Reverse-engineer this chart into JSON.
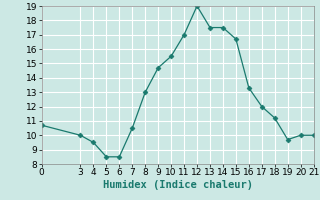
{
  "x": [
    0,
    3,
    4,
    5,
    6,
    7,
    8,
    9,
    10,
    11,
    12,
    13,
    14,
    15,
    16,
    17,
    18,
    19,
    20,
    21
  ],
  "y": [
    10.7,
    10.0,
    9.5,
    8.5,
    8.5,
    10.5,
    13.0,
    14.7,
    15.5,
    17.0,
    19.0,
    17.5,
    17.5,
    16.7,
    13.3,
    12.0,
    11.2,
    9.7,
    10.0,
    10.0
  ],
  "xlabel": "Humidex (Indice chaleur)",
  "xlim": [
    0,
    21
  ],
  "ylim": [
    8,
    19
  ],
  "yticks": [
    8,
    9,
    10,
    11,
    12,
    13,
    14,
    15,
    16,
    17,
    18,
    19
  ],
  "xticks": [
    0,
    3,
    4,
    5,
    6,
    7,
    8,
    9,
    10,
    11,
    12,
    13,
    14,
    15,
    16,
    17,
    18,
    19,
    20,
    21
  ],
  "line_color": "#1a7a6e",
  "marker": "D",
  "marker_size": 2.5,
  "bg_color": "#cce8e4",
  "grid_color": "#ffffff",
  "label_fontsize": 7.5,
  "tick_fontsize": 6.5
}
